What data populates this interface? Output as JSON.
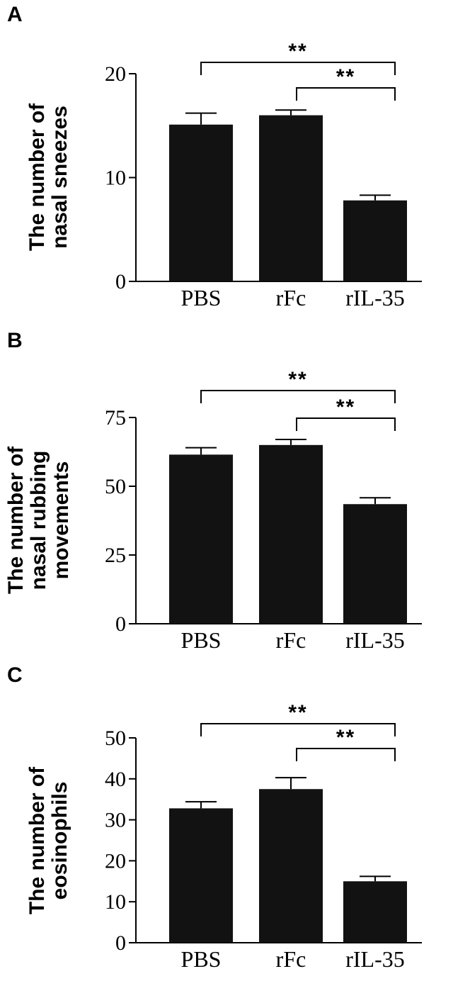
{
  "chart_data": [
    {
      "type": "bar",
      "panel": "A",
      "ylabel_lines": [
        "The number of",
        "nasal sneezes"
      ],
      "categories": [
        "PBS",
        "rFc",
        "rIL-35"
      ],
      "values": [
        15.1,
        16.0,
        7.8
      ],
      "errors": [
        1.1,
        0.5,
        0.5
      ],
      "yticks": [
        0,
        10,
        20
      ],
      "ylim": [
        0,
        20
      ],
      "significance": [
        {
          "from": "PBS",
          "to": "rIL-35",
          "label": "**"
        },
        {
          "from": "rFc",
          "to": "rIL-35",
          "label": "**"
        }
      ]
    },
    {
      "type": "bar",
      "panel": "B",
      "ylabel_lines": [
        "The number of",
        "nasal rubbing",
        "movements"
      ],
      "categories": [
        "PBS",
        "rFc",
        "rIL-35"
      ],
      "values": [
        61.5,
        65.0,
        43.5
      ],
      "errors": [
        2.5,
        2.0,
        2.3
      ],
      "yticks": [
        0,
        25,
        50,
        75
      ],
      "ylim": [
        0,
        75
      ],
      "significance": [
        {
          "from": "PBS",
          "to": "rIL-35",
          "label": "**"
        },
        {
          "from": "rFc",
          "to": "rIL-35",
          "label": "**"
        }
      ]
    },
    {
      "type": "bar",
      "panel": "C",
      "ylabel_lines": [
        "The number of",
        "eosinophils"
      ],
      "categories": [
        "PBS",
        "rFc",
        "rIL-35"
      ],
      "values": [
        32.8,
        37.5,
        15.0
      ],
      "errors": [
        1.6,
        2.8,
        1.2
      ],
      "yticks": [
        0,
        10,
        20,
        30,
        40,
        50
      ],
      "ylim": [
        0,
        50
      ],
      "significance": [
        {
          "from": "PBS",
          "to": "rIL-35",
          "label": "**"
        },
        {
          "from": "rFc",
          "to": "rIL-35",
          "label": "**"
        }
      ]
    }
  ]
}
